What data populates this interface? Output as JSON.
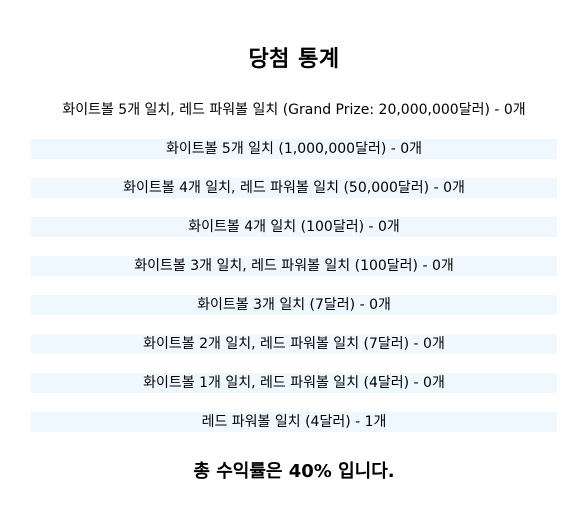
{
  "title": "당첨 통계",
  "results": [
    {
      "label": "화이트볼 5개 일치, 레드 파워볼 일치 (Grand Prize: 20,000,000달러) - 0개"
    },
    {
      "label": "화이트볼 5개 일치 (1,000,000달러) - 0개"
    },
    {
      "label": "화이트볼 4개 일치, 레드 파워볼 일치 (50,000달러) - 0개"
    },
    {
      "label": "화이트볼 4개 일치 (100달러) - 0개"
    },
    {
      "label": "화이트볼 3개 일치, 레드 파워볼 일치 (100달러) - 0개"
    },
    {
      "label": "화이트볼 3개 일치 (7달러) - 0개"
    },
    {
      "label": "화이트볼 2개 일치, 레드 파워볼 일치 (7달러) - 0개"
    },
    {
      "label": "화이트볼 1개 일치, 레드 파워볼 일치 (4달러) - 0개"
    },
    {
      "label": "레드 파워볼 일치 (4달러) - 1개"
    }
  ],
  "summary": "총 수익률은 40% 입니다.",
  "colors": {
    "row_highlight": "#f0f8ff",
    "text": "#000000",
    "background": "#ffffff"
  }
}
